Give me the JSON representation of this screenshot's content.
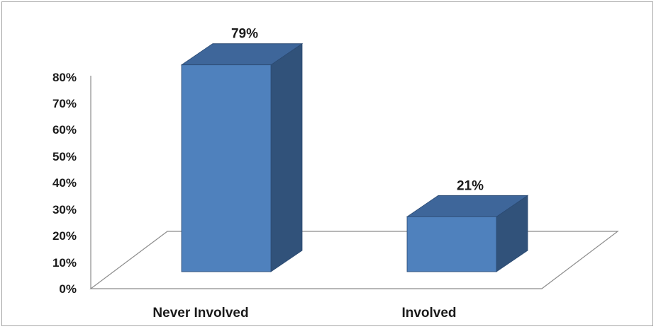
{
  "chart_data": {
    "type": "bar",
    "categories": [
      "Never Involved",
      "Involved"
    ],
    "values": [
      0.79,
      0.21
    ],
    "data_labels": [
      "79%",
      "21%"
    ],
    "y_ticks": [
      "0%",
      "10%",
      "20%",
      "30%",
      "40%",
      "50%",
      "60%",
      "70%",
      "80%"
    ],
    "ylim": [
      0,
      0.8
    ],
    "grid": false,
    "legend": "none",
    "style": "3d-column",
    "colors": {
      "bar_front": "#4f81bd",
      "bar_side": "#31527a",
      "bar_top": "#3e669a",
      "bar_edge": "#2b4a72",
      "axis_line": "#8c8c8c",
      "frame_border": "#a6a6a6"
    }
  }
}
